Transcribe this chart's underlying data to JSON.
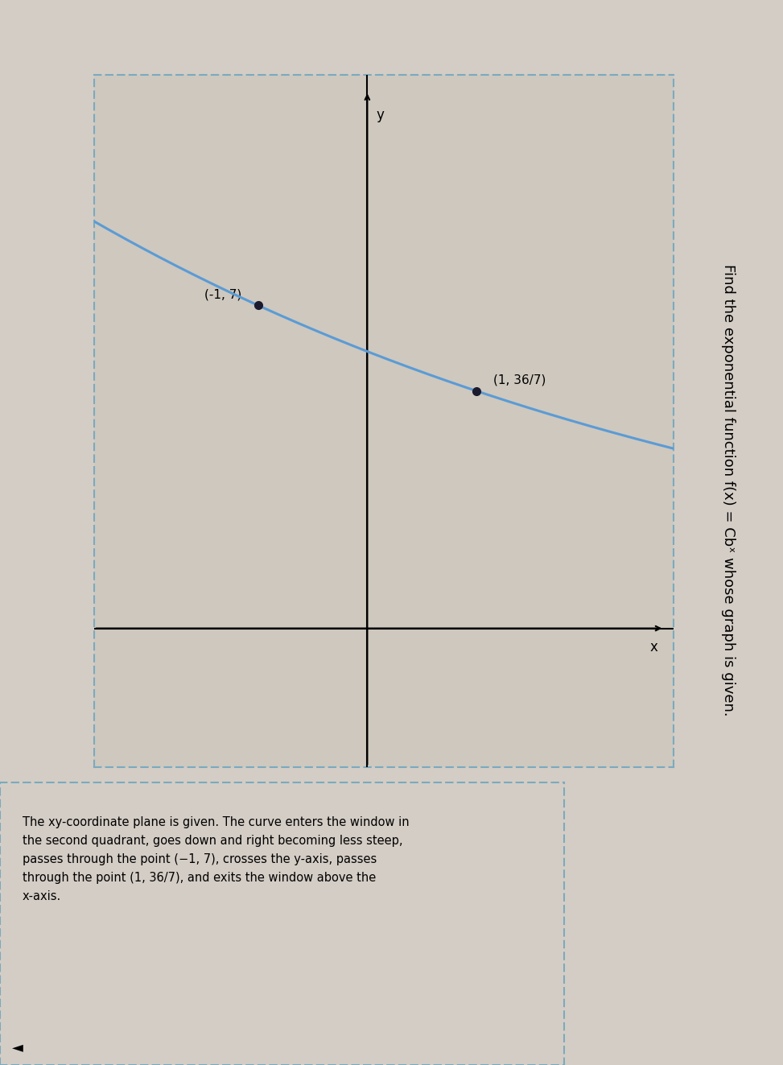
{
  "title": "Find the exponential function f(x) = Cbˣ whose graph is given.",
  "point1": [
    -1,
    7
  ],
  "point2": [
    1,
    5.142857142857143
  ],
  "point2_label": "(1, 36/7)",
  "point1_label": "(-1, 7)",
  "C": 6,
  "b": 0.857142857142857,
  "x_label": "x",
  "y_label": "y",
  "xlim": [
    -2.5,
    2.8
  ],
  "ylim": [
    -3,
    12
  ],
  "curve_color": "#5b9bd5",
  "point_color": "#1a1a2e",
  "bg_color": "#d4cdc5",
  "plot_bg_color": "#cec8be",
  "border_color": "#7aaabf",
  "title_fontsize": 13,
  "label_fontsize": 11,
  "axis_label_fontsize": 12,
  "curve_linewidth": 2.2,
  "description": "The xy-coordinate plane is given. The curve enters the window in\nthe second quadrant, goes down and right becoming less steep,\npasses through the point (−1, 7), crosses the y-axis, passes\nthrough the point (1, 36/7), and exits the window above the\nx-axis."
}
